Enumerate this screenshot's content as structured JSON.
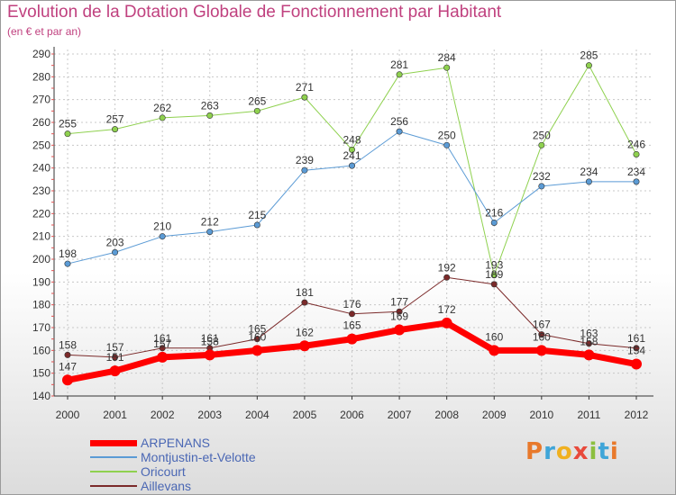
{
  "header": {
    "title": "Evolution de la Dotation Globale de Fonctionnement par Habitant",
    "subtitle": "(en € et par an)"
  },
  "brand": {
    "parts": [
      "P",
      "r",
      "o",
      "x",
      "i",
      "t",
      "i"
    ],
    "colors": [
      "#e8792b",
      "#3fa5d8",
      "#f0b020",
      "#e84a3c",
      "#8cbf3f",
      "#3fa5d8",
      "#e8792b"
    ]
  },
  "chart_data": {
    "type": "line",
    "x": [
      "2000",
      "2001",
      "2002",
      "2003",
      "2004",
      "2005",
      "2006",
      "2007",
      "2008",
      "2009",
      "2010",
      "2011",
      "2012"
    ],
    "ylim": [
      140,
      290
    ],
    "yticks": [
      140,
      150,
      160,
      170,
      180,
      190,
      200,
      210,
      220,
      230,
      240,
      250,
      260,
      270,
      280,
      290
    ],
    "grid": true,
    "legend_position": "bottom-left",
    "series": [
      {
        "name": "Oricourt",
        "color": "#8fd14f",
        "line_width": 1,
        "values": [
          255,
          257,
          262,
          263,
          265,
          271,
          248,
          281,
          284,
          193,
          250,
          285,
          246
        ]
      },
      {
        "name": "Montjustin-et-Velotte",
        "color": "#5b9bd5",
        "line_width": 1,
        "values": [
          198,
          203,
          210,
          212,
          215,
          239,
          241,
          256,
          250,
          216,
          232,
          234,
          234
        ]
      },
      {
        "name": "Aillevans",
        "color": "#7b2a2a",
        "line_width": 1,
        "values": [
          158,
          157,
          161,
          161,
          165,
          181,
          176,
          177,
          192,
          189,
          167,
          163,
          161
        ]
      },
      {
        "name": "ARPENANS",
        "color": "#ff0000",
        "line_width": 7,
        "values": [
          147,
          151,
          157,
          158,
          160,
          162,
          165,
          169,
          172,
          160,
          160,
          158,
          154
        ]
      }
    ],
    "legend_order": [
      "ARPENANS",
      "Montjustin-et-Velotte",
      "Oricourt",
      "Aillevans"
    ]
  }
}
